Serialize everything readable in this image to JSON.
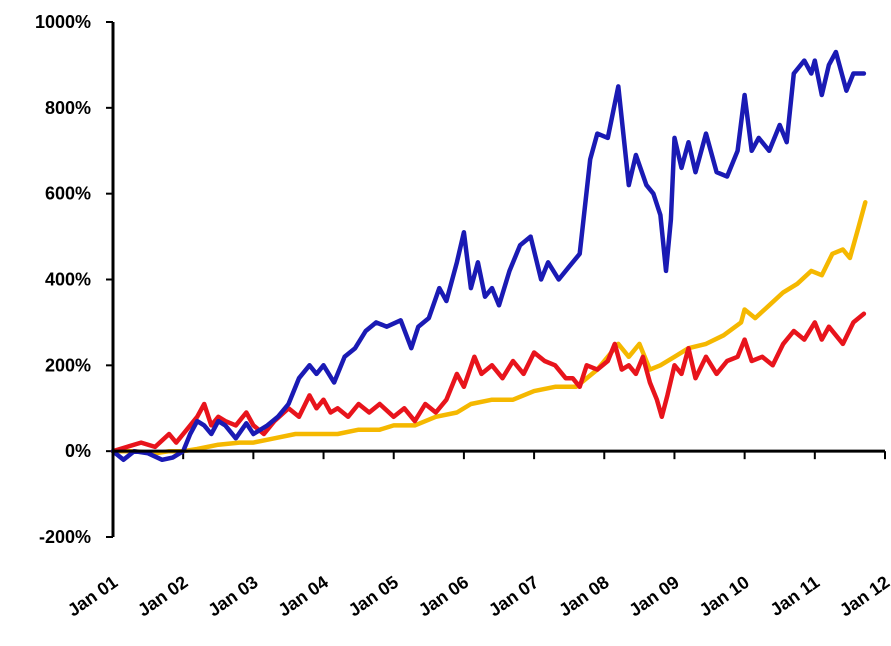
{
  "chart_data": {
    "type": "line",
    "title": "",
    "xlabel": "",
    "ylabel": "",
    "ylim": [
      -200,
      1000
    ],
    "y_ticks": [
      -200,
      0,
      200,
      400,
      600,
      800,
      1000
    ],
    "y_tick_labels": [
      "-200%",
      "0%",
      "200%",
      "400%",
      "600%",
      "800%",
      "1000%"
    ],
    "x_ticks": [
      2001,
      2002,
      2003,
      2004,
      2005,
      2006,
      2007,
      2008,
      2009,
      2010,
      2011,
      2012
    ],
    "x_tick_labels": [
      "Jan 01",
      "Jan 02",
      "Jan 03",
      "Jan 04",
      "Jan 05",
      "Jan 06",
      "Jan 07",
      "Jan 08",
      "Jan 09",
      "Jan 10",
      "Jan 11",
      "Jan 12"
    ],
    "xlim": [
      2001,
      2012
    ],
    "grid": false,
    "legend": false,
    "series": [
      {
        "color": "#1a1ab4",
        "points": [
          [
            2001.0,
            0
          ],
          [
            2001.15,
            -20
          ],
          [
            2001.3,
            0
          ],
          [
            2001.5,
            -5
          ],
          [
            2001.7,
            -20
          ],
          [
            2001.85,
            -15
          ],
          [
            2002.0,
            0
          ],
          [
            2002.1,
            40
          ],
          [
            2002.2,
            70
          ],
          [
            2002.3,
            60
          ],
          [
            2002.4,
            40
          ],
          [
            2002.5,
            70
          ],
          [
            2002.6,
            60
          ],
          [
            2002.75,
            30
          ],
          [
            2002.9,
            65
          ],
          [
            2003.0,
            40
          ],
          [
            2003.2,
            60
          ],
          [
            2003.35,
            80
          ],
          [
            2003.5,
            110
          ],
          [
            2003.65,
            170
          ],
          [
            2003.8,
            200
          ],
          [
            2003.9,
            180
          ],
          [
            2004.0,
            200
          ],
          [
            2004.15,
            160
          ],
          [
            2004.3,
            220
          ],
          [
            2004.45,
            240
          ],
          [
            2004.6,
            280
          ],
          [
            2004.75,
            300
          ],
          [
            2004.9,
            290
          ],
          [
            2005.1,
            305
          ],
          [
            2005.25,
            240
          ],
          [
            2005.35,
            290
          ],
          [
            2005.5,
            310
          ],
          [
            2005.65,
            380
          ],
          [
            2005.75,
            350
          ],
          [
            2005.9,
            440
          ],
          [
            2006.0,
            510
          ],
          [
            2006.1,
            380
          ],
          [
            2006.2,
            440
          ],
          [
            2006.3,
            360
          ],
          [
            2006.4,
            380
          ],
          [
            2006.5,
            340
          ],
          [
            2006.65,
            420
          ],
          [
            2006.8,
            480
          ],
          [
            2006.95,
            500
          ],
          [
            2007.1,
            400
          ],
          [
            2007.2,
            440
          ],
          [
            2007.35,
            400
          ],
          [
            2007.5,
            430
          ],
          [
            2007.65,
            460
          ],
          [
            2007.8,
            680
          ],
          [
            2007.9,
            740
          ],
          [
            2008.05,
            730
          ],
          [
            2008.2,
            850
          ],
          [
            2008.35,
            620
          ],
          [
            2008.45,
            690
          ],
          [
            2008.6,
            620
          ],
          [
            2008.7,
            600
          ],
          [
            2008.8,
            550
          ],
          [
            2008.88,
            420
          ],
          [
            2008.95,
            540
          ],
          [
            2009.0,
            730
          ],
          [
            2009.1,
            660
          ],
          [
            2009.2,
            720
          ],
          [
            2009.3,
            650
          ],
          [
            2009.45,
            740
          ],
          [
            2009.6,
            650
          ],
          [
            2009.75,
            640
          ],
          [
            2009.9,
            700
          ],
          [
            2010.0,
            830
          ],
          [
            2010.1,
            700
          ],
          [
            2010.2,
            730
          ],
          [
            2010.35,
            700
          ],
          [
            2010.5,
            760
          ],
          [
            2010.6,
            720
          ],
          [
            2010.7,
            880
          ],
          [
            2010.85,
            910
          ],
          [
            2010.95,
            880
          ],
          [
            2011.0,
            910
          ],
          [
            2011.1,
            830
          ],
          [
            2011.2,
            900
          ],
          [
            2011.3,
            930
          ],
          [
            2011.45,
            840
          ],
          [
            2011.55,
            880
          ],
          [
            2011.7,
            880
          ]
        ]
      },
      {
        "color": "#e8141c",
        "points": [
          [
            2001.0,
            0
          ],
          [
            2001.2,
            10
          ],
          [
            2001.4,
            20
          ],
          [
            2001.6,
            10
          ],
          [
            2001.8,
            40
          ],
          [
            2001.9,
            20
          ],
          [
            2002.0,
            40
          ],
          [
            2002.1,
            60
          ],
          [
            2002.2,
            80
          ],
          [
            2002.3,
            110
          ],
          [
            2002.4,
            60
          ],
          [
            2002.5,
            80
          ],
          [
            2002.6,
            70
          ],
          [
            2002.75,
            60
          ],
          [
            2002.9,
            90
          ],
          [
            2003.0,
            60
          ],
          [
            2003.15,
            40
          ],
          [
            2003.3,
            70
          ],
          [
            2003.5,
            100
          ],
          [
            2003.65,
            80
          ],
          [
            2003.8,
            130
          ],
          [
            2003.9,
            100
          ],
          [
            2004.0,
            120
          ],
          [
            2004.1,
            90
          ],
          [
            2004.2,
            100
          ],
          [
            2004.35,
            80
          ],
          [
            2004.5,
            110
          ],
          [
            2004.65,
            90
          ],
          [
            2004.8,
            110
          ],
          [
            2005.0,
            80
          ],
          [
            2005.15,
            100
          ],
          [
            2005.3,
            70
          ],
          [
            2005.45,
            110
          ],
          [
            2005.6,
            90
          ],
          [
            2005.75,
            120
          ],
          [
            2005.9,
            180
          ],
          [
            2006.0,
            150
          ],
          [
            2006.15,
            220
          ],
          [
            2006.25,
            180
          ],
          [
            2006.4,
            200
          ],
          [
            2006.55,
            170
          ],
          [
            2006.7,
            210
          ],
          [
            2006.85,
            180
          ],
          [
            2007.0,
            230
          ],
          [
            2007.15,
            210
          ],
          [
            2007.3,
            200
          ],
          [
            2007.45,
            170
          ],
          [
            2007.55,
            170
          ],
          [
            2007.65,
            150
          ],
          [
            2007.75,
            200
          ],
          [
            2007.9,
            190
          ],
          [
            2008.05,
            210
          ],
          [
            2008.15,
            250
          ],
          [
            2008.25,
            190
          ],
          [
            2008.35,
            200
          ],
          [
            2008.45,
            180
          ],
          [
            2008.55,
            220
          ],
          [
            2008.65,
            160
          ],
          [
            2008.75,
            120
          ],
          [
            2008.82,
            80
          ],
          [
            2008.9,
            130
          ],
          [
            2009.0,
            200
          ],
          [
            2009.1,
            180
          ],
          [
            2009.2,
            240
          ],
          [
            2009.3,
            170
          ],
          [
            2009.45,
            220
          ],
          [
            2009.6,
            180
          ],
          [
            2009.75,
            210
          ],
          [
            2009.9,
            220
          ],
          [
            2010.0,
            260
          ],
          [
            2010.1,
            210
          ],
          [
            2010.25,
            220
          ],
          [
            2010.4,
            200
          ],
          [
            2010.55,
            250
          ],
          [
            2010.7,
            280
          ],
          [
            2010.85,
            260
          ],
          [
            2011.0,
            300
          ],
          [
            2011.1,
            260
          ],
          [
            2011.2,
            290
          ],
          [
            2011.3,
            270
          ],
          [
            2011.4,
            250
          ],
          [
            2011.55,
            300
          ],
          [
            2011.7,
            320
          ]
        ]
      },
      {
        "color": "#f5b800",
        "points": [
          [
            2001.0,
            0
          ],
          [
            2001.3,
            0
          ],
          [
            2001.6,
            -5
          ],
          [
            2001.8,
            0
          ],
          [
            2002.0,
            0
          ],
          [
            2002.2,
            5
          ],
          [
            2002.5,
            15
          ],
          [
            2002.8,
            20
          ],
          [
            2003.0,
            20
          ],
          [
            2003.3,
            30
          ],
          [
            2003.6,
            40
          ],
          [
            2003.9,
            40
          ],
          [
            2004.2,
            40
          ],
          [
            2004.5,
            50
          ],
          [
            2004.8,
            50
          ],
          [
            2005.0,
            60
          ],
          [
            2005.3,
            60
          ],
          [
            2005.6,
            80
          ],
          [
            2005.9,
            90
          ],
          [
            2006.1,
            110
          ],
          [
            2006.4,
            120
          ],
          [
            2006.7,
            120
          ],
          [
            2007.0,
            140
          ],
          [
            2007.3,
            150
          ],
          [
            2007.6,
            150
          ],
          [
            2007.9,
            190
          ],
          [
            2008.1,
            230
          ],
          [
            2008.2,
            250
          ],
          [
            2008.35,
            220
          ],
          [
            2008.5,
            250
          ],
          [
            2008.65,
            190
          ],
          [
            2008.8,
            200
          ],
          [
            2009.0,
            220
          ],
          [
            2009.2,
            240
          ],
          [
            2009.45,
            250
          ],
          [
            2009.7,
            270
          ],
          [
            2009.95,
            300
          ],
          [
            2010.0,
            330
          ],
          [
            2010.15,
            310
          ],
          [
            2010.35,
            340
          ],
          [
            2010.55,
            370
          ],
          [
            2010.75,
            390
          ],
          [
            2010.95,
            420
          ],
          [
            2011.1,
            410
          ],
          [
            2011.25,
            460
          ],
          [
            2011.4,
            470
          ],
          [
            2011.5,
            450
          ],
          [
            2011.62,
            520
          ],
          [
            2011.72,
            580
          ]
        ]
      }
    ]
  }
}
